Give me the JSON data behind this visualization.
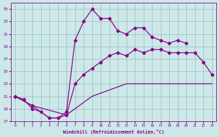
{
  "xlabel": "Windchill (Refroidissement éolien,°C)",
  "background_color": "#cce8e8",
  "line_color": "#880088",
  "grid_color": "#99bbbb",
  "xlim": [
    -0.5,
    23.5
  ],
  "ylim": [
    17,
    36
  ],
  "yticks": [
    17,
    19,
    21,
    23,
    25,
    27,
    29,
    31,
    33,
    35
  ],
  "xticks": [
    0,
    1,
    2,
    3,
    4,
    5,
    6,
    7,
    8,
    9,
    10,
    11,
    12,
    13,
    14,
    15,
    16,
    17,
    18,
    19,
    20,
    21,
    22,
    23
  ],
  "line1_x": [
    0,
    1,
    2,
    3,
    4,
    5,
    6,
    7,
    8,
    9,
    10,
    11,
    12,
    13,
    14,
    15,
    16,
    17,
    18,
    19,
    20
  ],
  "line1_y": [
    21.0,
    20.5,
    19.0,
    18.5,
    17.5,
    17.5,
    18.5,
    30.0,
    33.0,
    35.0,
    33.5,
    33.5,
    31.5,
    31.0,
    32.0,
    32.0,
    30.5,
    30.0,
    29.5,
    30.0,
    29.5
  ],
  "line2_x": [
    0,
    2,
    6,
    7,
    8,
    9,
    10,
    11,
    12,
    13,
    14,
    15,
    16,
    17,
    18,
    19,
    20,
    21,
    22,
    23
  ],
  "line2_y": [
    21.0,
    19.5,
    18.0,
    23.0,
    24.5,
    25.5,
    26.5,
    27.5,
    28.0,
    27.5,
    28.5,
    28.0,
    28.5,
    28.5,
    28.0,
    28.0,
    28.0,
    28.0,
    26.5,
    24.5
  ],
  "line3_x": [
    0,
    2,
    3,
    4,
    5,
    6,
    7,
    8,
    9,
    10,
    11,
    12,
    13,
    14,
    15,
    16,
    17,
    18,
    19,
    20,
    21,
    22,
    23
  ],
  "line3_y": [
    21.0,
    19.5,
    18.5,
    17.5,
    17.5,
    18.0,
    19.0,
    20.0,
    21.0,
    21.5,
    22.0,
    22.5,
    23.0,
    23.0,
    23.0,
    23.0,
    23.0,
    23.0,
    23.0,
    23.0,
    23.0,
    23.0,
    23.0
  ]
}
